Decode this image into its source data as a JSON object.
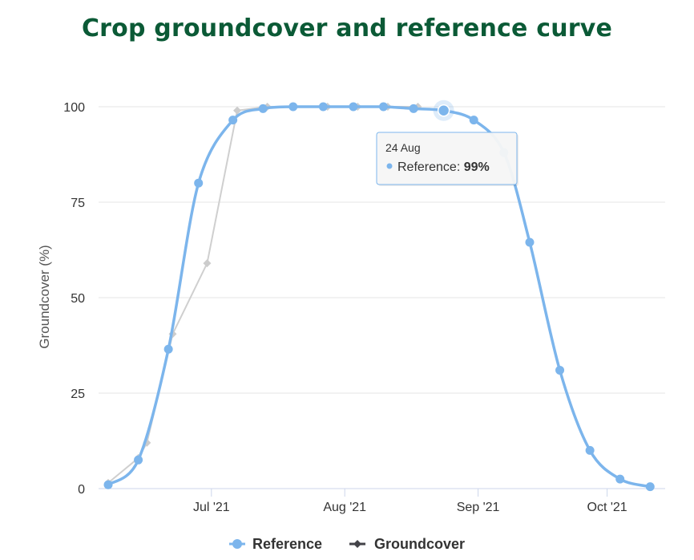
{
  "chart_data": {
    "type": "line",
    "title": "Crop groundcover and reference curve",
    "xlabel": "",
    "ylabel": "Groundcover (%)",
    "ylim": [
      0,
      100
    ],
    "y_ticks": [
      "0",
      "25",
      "50",
      "75",
      "100"
    ],
    "x_ticks": [
      {
        "date": "2021-07-01",
        "label": "Jul '21"
      },
      {
        "date": "2021-08-01",
        "label": "Aug '21"
      },
      {
        "date": "2021-09-01",
        "label": "Sep '21"
      },
      {
        "date": "2021-10-01",
        "label": "Oct '21"
      }
    ],
    "xlim": [
      "2021-06-07",
      "2021-10-13"
    ],
    "grid": "horizontal",
    "legend_position": "bottom",
    "series": [
      {
        "name": "Reference",
        "color": "#7cb5ec",
        "marker": "circle",
        "smooth": true,
        "points": [
          {
            "x": "2021-06-07",
            "y": 1
          },
          {
            "x": "2021-06-14",
            "y": 7.5
          },
          {
            "x": "2021-06-21",
            "y": 36.5
          },
          {
            "x": "2021-06-28",
            "y": 80
          },
          {
            "x": "2021-07-06",
            "y": 96.5
          },
          {
            "x": "2021-07-13",
            "y": 99.5
          },
          {
            "x": "2021-07-20",
            "y": 100
          },
          {
            "x": "2021-07-27",
            "y": 100
          },
          {
            "x": "2021-08-03",
            "y": 100
          },
          {
            "x": "2021-08-10",
            "y": 100
          },
          {
            "x": "2021-08-17",
            "y": 99.5
          },
          {
            "x": "2021-08-24",
            "y": 99
          },
          {
            "x": "2021-08-31",
            "y": 96.5
          },
          {
            "x": "2021-09-07",
            "y": 88
          },
          {
            "x": "2021-09-13",
            "y": 64.5
          },
          {
            "x": "2021-09-20",
            "y": 31
          },
          {
            "x": "2021-09-27",
            "y": 10
          },
          {
            "x": "2021-10-04",
            "y": 2.5
          },
          {
            "x": "2021-10-11",
            "y": 0.5
          }
        ]
      },
      {
        "name": "Groundcover",
        "color": "#434348",
        "marker": "diamond",
        "smooth": false,
        "points": [
          {
            "x": "2021-06-07",
            "y": 1.5
          },
          {
            "x": "2021-06-14",
            "y": 8
          },
          {
            "x": "2021-06-16",
            "y": 12
          },
          {
            "x": "2021-06-22",
            "y": 40.5
          },
          {
            "x": "2021-06-30",
            "y": 59
          },
          {
            "x": "2021-07-07",
            "y": 99
          },
          {
            "x": "2021-07-14",
            "y": 100
          },
          {
            "x": "2021-07-28",
            "y": 100
          },
          {
            "x": "2021-08-04",
            "y": 100
          },
          {
            "x": "2021-08-11",
            "y": 100
          },
          {
            "x": "2021-08-18",
            "y": 100
          }
        ]
      }
    ],
    "tooltip": {
      "date": "24 Aug",
      "series": "Reference",
      "value_text": "99%"
    }
  }
}
